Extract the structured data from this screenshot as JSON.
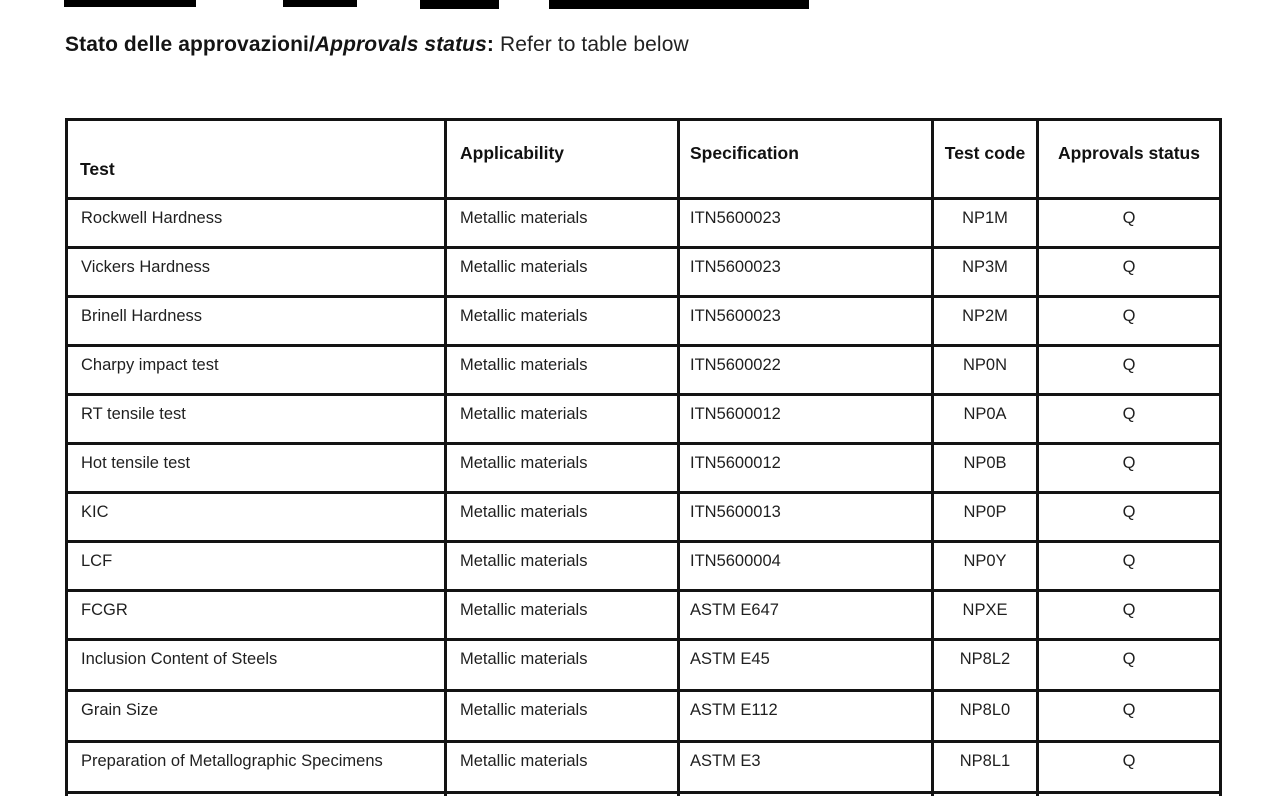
{
  "redactions": {
    "bar_color": "#000000",
    "count": 4
  },
  "title": {
    "part_bold": "Stato delle approvazioni/",
    "part_bold_italic": "Approvals status",
    "part_separator": ":",
    "part_regular": "Refer to table below"
  },
  "table": {
    "headers": {
      "test": "Test",
      "applicability": "Applicability",
      "specification": "Specification",
      "test_code": "Test code",
      "approvals_status": "Approvals status"
    },
    "rows": [
      {
        "test": "Rockwell Hardness",
        "applicability": "Metallic materials",
        "specification": "ITN5600023",
        "test_code": "NP1M",
        "approvals_status": "Q"
      },
      {
        "test": "Vickers Hardness",
        "applicability": "Metallic materials",
        "specification": "ITN5600023",
        "test_code": "NP3M",
        "approvals_status": "Q"
      },
      {
        "test": "Brinell Hardness",
        "applicability": "Metallic materials",
        "specification": "ITN5600023",
        "test_code": "NP2M",
        "approvals_status": "Q"
      },
      {
        "test": "Charpy impact test",
        "applicability": "Metallic materials",
        "specification": "ITN5600022",
        "test_code": "NP0N",
        "approvals_status": "Q"
      },
      {
        "test": "RT tensile test",
        "applicability": "Metallic materials",
        "specification": "ITN5600012",
        "test_code": "NP0A",
        "approvals_status": "Q"
      },
      {
        "test": "Hot tensile test",
        "applicability": "Metallic materials",
        "specification": "ITN5600012",
        "test_code": "NP0B",
        "approvals_status": "Q"
      },
      {
        "test": "KIC",
        "applicability": "Metallic materials",
        "specification": "ITN5600013",
        "test_code": "NP0P",
        "approvals_status": "Q"
      },
      {
        "test": "LCF",
        "applicability": "Metallic materials",
        "specification": "ITN5600004",
        "test_code": "NP0Y",
        "approvals_status": "Q"
      },
      {
        "test": "FCGR",
        "applicability": "Metallic materials",
        "specification": "ASTM E647",
        "test_code": "NPXE",
        "approvals_status": "Q"
      },
      {
        "test": "Inclusion Content of Steels",
        "applicability": "Metallic materials",
        "specification": "ASTM E45",
        "test_code": "NP8L2",
        "approvals_status": "Q"
      },
      {
        "test": "Grain Size",
        "applicability": "Metallic materials",
        "specification": "ASTM E112",
        "test_code": "NP8L0",
        "approvals_status": "Q"
      },
      {
        "test": "Preparation of Metallographic Specimens",
        "applicability": "Metallic materials",
        "specification": "ASTM E3",
        "test_code": "NP8L1",
        "approvals_status": "Q"
      }
    ]
  }
}
